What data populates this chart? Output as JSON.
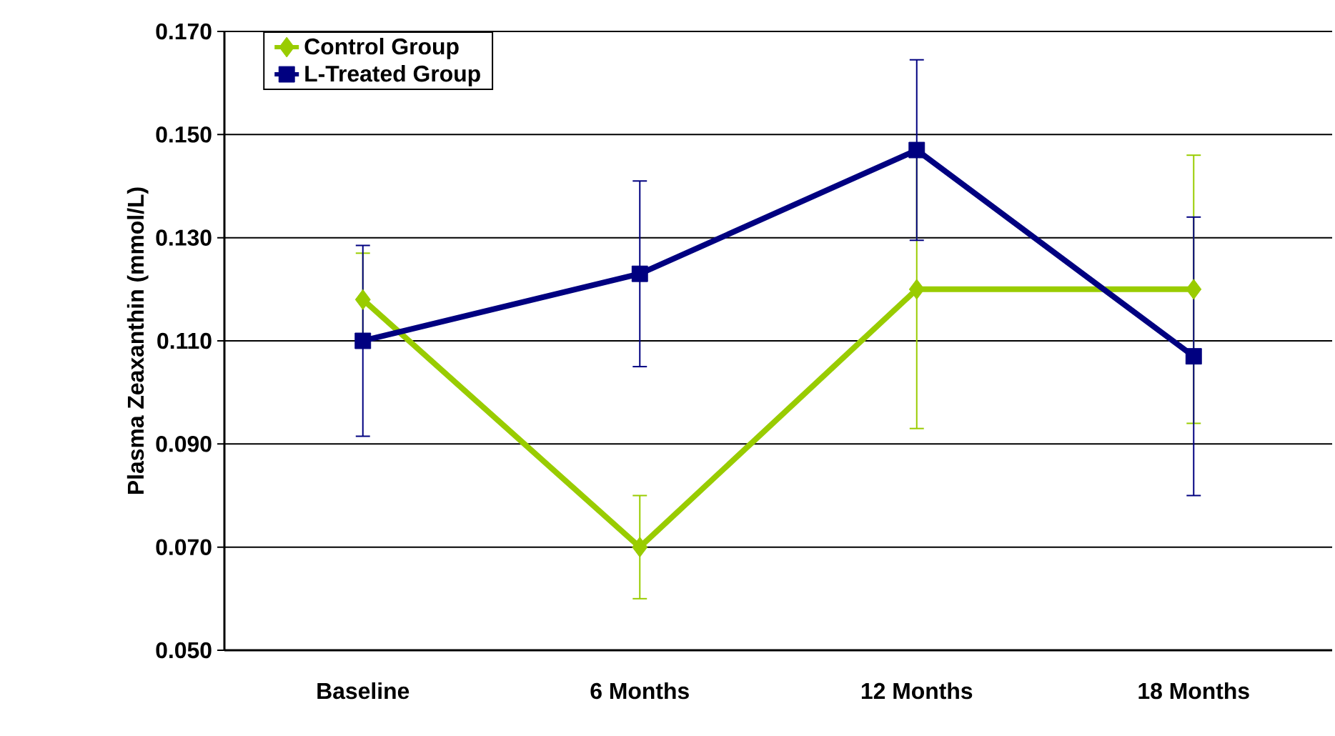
{
  "chart_data": {
    "type": "line",
    "ylabel": "Plasma Zeaxanthin (mmol/L)",
    "categories": [
      "Baseline",
      "6 Months",
      "12 Months",
      "18 Months"
    ],
    "series": [
      {
        "name": "Control Group",
        "color": "#99cc00",
        "marker": "diamond",
        "values": [
          0.118,
          0.07,
          0.12,
          0.12
        ],
        "errors": [
          0.009,
          0.01,
          0.027,
          0.026
        ]
      },
      {
        "name": "L-Treated Group",
        "color": "#000080",
        "marker": "square",
        "values": [
          0.11,
          0.123,
          0.147,
          0.107
        ],
        "errors": [
          0.0185,
          0.018,
          0.0175,
          0.027
        ]
      }
    ],
    "ylim": [
      0.05,
      0.17
    ],
    "yticks": [
      {
        "value": 0.05,
        "label": "0.050"
      },
      {
        "value": 0.07,
        "label": "0.070"
      },
      {
        "value": 0.09,
        "label": "0.090"
      },
      {
        "value": 0.11,
        "label": "0.110"
      },
      {
        "value": 0.13,
        "label": "0.130"
      },
      {
        "value": 0.15,
        "label": "0.150"
      },
      {
        "value": 0.17,
        "label": "0.170"
      }
    ],
    "grid": "y",
    "legend": "top left",
    "line_style": "solid"
  }
}
